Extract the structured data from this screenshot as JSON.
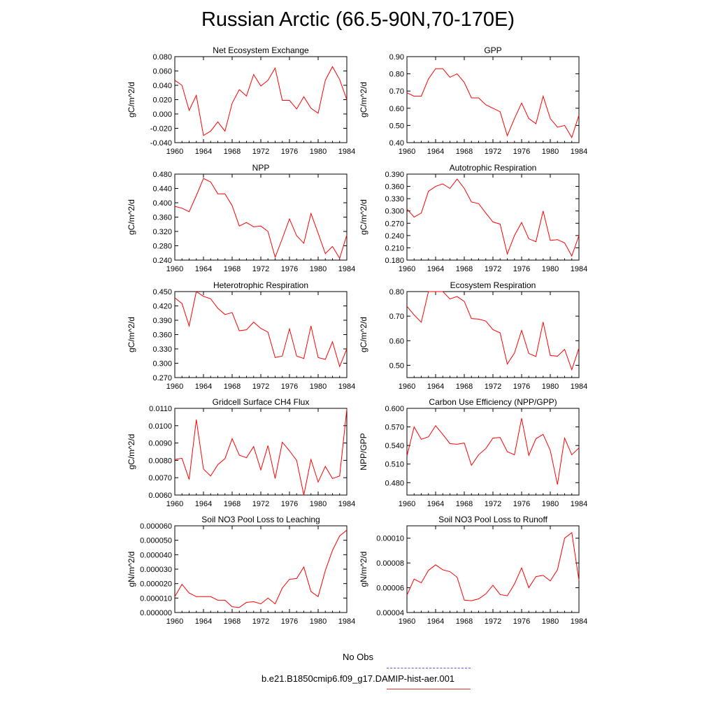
{
  "title": "Russian Arctic (66.5-90N,70-170E)",
  "legend": [
    {
      "label": "No Obs",
      "color": "#5555dd",
      "style": "dashed"
    },
    {
      "label": "b.e21.B1850cmip6.f09_g17.DAMIP-hist-aer.001",
      "color": "#dd3333",
      "style": "solid"
    }
  ],
  "chart_data": [
    {
      "type": "line",
      "title": "Net Ecosystem Exchange",
      "ylabel": "gC/m^2/d",
      "xlim": [
        1960,
        1984
      ],
      "ylim": [
        -0.04,
        0.08
      ],
      "xticks": [
        "1960",
        "1964",
        "1968",
        "1972",
        "1976",
        "1980",
        "1984"
      ],
      "yticks": [
        "-0.040",
        "-0.020",
        "0.000",
        "0.020",
        "0.040",
        "0.060",
        "0.080"
      ],
      "x": [
        1960,
        1961,
        1962,
        1963,
        1964,
        1965,
        1966,
        1967,
        1968,
        1969,
        1970,
        1971,
        1972,
        1973,
        1974,
        1975,
        1976,
        1977,
        1978,
        1979,
        1980,
        1981,
        1982,
        1983,
        1984
      ],
      "series": [
        {
          "color": "#ff0000",
          "values": [
            0.047,
            0.04,
            0.005,
            0.026,
            -0.03,
            -0.024,
            -0.011,
            -0.024,
            0.015,
            0.034,
            0.025,
            0.055,
            0.039,
            0.047,
            0.064,
            0.019,
            0.019,
            0.007,
            0.024,
            0.008,
            0.001,
            0.047,
            0.066,
            0.048,
            0.02
          ]
        }
      ]
    },
    {
      "type": "line",
      "title": "GPP",
      "ylabel": "gC/m^2/d",
      "xlim": [
        1960,
        1984
      ],
      "ylim": [
        0.4,
        0.9
      ],
      "xticks": [
        "1960",
        "1964",
        "1968",
        "1972",
        "1976",
        "1980",
        "1984"
      ],
      "yticks": [
        "0.40",
        "0.50",
        "0.60",
        "0.70",
        "0.80",
        "0.90"
      ],
      "x": [
        1960,
        1961,
        1962,
        1963,
        1964,
        1965,
        1966,
        1967,
        1968,
        1969,
        1970,
        1971,
        1972,
        1973,
        1974,
        1975,
        1976,
        1977,
        1978,
        1979,
        1980,
        1981,
        1982,
        1983,
        1984
      ],
      "series": [
        {
          "color": "#ff0000",
          "values": [
            0.69,
            0.67,
            0.67,
            0.77,
            0.83,
            0.83,
            0.78,
            0.8,
            0.75,
            0.66,
            0.66,
            0.62,
            0.6,
            0.58,
            0.44,
            0.54,
            0.63,
            0.54,
            0.51,
            0.67,
            0.54,
            0.49,
            0.5,
            0.43,
            0.56
          ]
        }
      ]
    },
    {
      "type": "line",
      "title": "NPP",
      "ylabel": "gC/m^2/d",
      "xlim": [
        1960,
        1984
      ],
      "ylim": [
        0.24,
        0.48
      ],
      "xticks": [
        "1960",
        "1964",
        "1968",
        "1972",
        "1976",
        "1980",
        "1984"
      ],
      "yticks": [
        "0.240",
        "0.280",
        "0.320",
        "0.360",
        "0.400",
        "0.440",
        "0.480"
      ],
      "x": [
        1960,
        1961,
        1962,
        1963,
        1964,
        1965,
        1966,
        1967,
        1968,
        1969,
        1970,
        1971,
        1972,
        1973,
        1974,
        1975,
        1976,
        1977,
        1978,
        1979,
        1980,
        1981,
        1982,
        1983,
        1984
      ],
      "series": [
        {
          "color": "#ff0000",
          "values": [
            0.39,
            0.385,
            0.375,
            0.42,
            0.468,
            0.458,
            0.425,
            0.425,
            0.392,
            0.335,
            0.345,
            0.333,
            0.335,
            0.32,
            0.248,
            0.3,
            0.355,
            0.308,
            0.287,
            0.37,
            0.315,
            0.258,
            0.278,
            0.245,
            0.31
          ]
        }
      ]
    },
    {
      "type": "line",
      "title": "Autotrophic Respiration",
      "ylabel": "gC/m^2/d",
      "xlim": [
        1960,
        1984
      ],
      "ylim": [
        0.18,
        0.39
      ],
      "xticks": [
        "1960",
        "1964",
        "1968",
        "1972",
        "1976",
        "1980",
        "1984"
      ],
      "yticks": [
        "0.180",
        "0.210",
        "0.240",
        "0.270",
        "0.300",
        "0.330",
        "0.360",
        "0.390"
      ],
      "x": [
        1960,
        1961,
        1962,
        1963,
        1964,
        1965,
        1966,
        1967,
        1968,
        1969,
        1970,
        1971,
        1972,
        1973,
        1974,
        1975,
        1976,
        1977,
        1978,
        1979,
        1980,
        1981,
        1982,
        1983,
        1984
      ],
      "series": [
        {
          "color": "#ff0000",
          "values": [
            0.305,
            0.285,
            0.295,
            0.348,
            0.36,
            0.366,
            0.355,
            0.378,
            0.355,
            0.322,
            0.318,
            0.295,
            0.273,
            0.268,
            0.195,
            0.24,
            0.272,
            0.232,
            0.225,
            0.3,
            0.228,
            0.23,
            0.222,
            0.19,
            0.24
          ]
        }
      ]
    },
    {
      "type": "line",
      "title": "Heterotrophic Respiration",
      "ylabel": "gC/m^2/d",
      "xlim": [
        1960,
        1984
      ],
      "ylim": [
        0.27,
        0.45
      ],
      "xticks": [
        "1960",
        "1964",
        "1968",
        "1972",
        "1976",
        "1980",
        "1984"
      ],
      "yticks": [
        "0.270",
        "0.300",
        "0.330",
        "0.360",
        "0.390",
        "0.420",
        "0.450"
      ],
      "x": [
        1960,
        1961,
        1962,
        1963,
        1964,
        1965,
        1966,
        1967,
        1968,
        1969,
        1970,
        1971,
        1972,
        1973,
        1974,
        1975,
        1976,
        1977,
        1978,
        1979,
        1980,
        1981,
        1982,
        1983,
        1984
      ],
      "series": [
        {
          "color": "#ff0000",
          "values": [
            0.437,
            0.425,
            0.378,
            0.45,
            0.44,
            0.435,
            0.415,
            0.402,
            0.406,
            0.368,
            0.37,
            0.386,
            0.373,
            0.365,
            0.312,
            0.315,
            0.372,
            0.315,
            0.31,
            0.378,
            0.312,
            0.308,
            0.345,
            0.293,
            0.33
          ]
        }
      ]
    },
    {
      "type": "line",
      "title": "Ecosystem Respiration",
      "ylabel": "gC/m^2/d",
      "xlim": [
        1960,
        1984
      ],
      "ylim": [
        0.45,
        0.8
      ],
      "xticks": [
        "1960",
        "1964",
        "1968",
        "1972",
        "1976",
        "1980",
        "1984"
      ],
      "yticks": [
        "0.50",
        "0.60",
        "0.70",
        "0.80"
      ],
      "x": [
        1960,
        1961,
        1962,
        1963,
        1964,
        1965,
        1966,
        1967,
        1968,
        1969,
        1970,
        1971,
        1972,
        1973,
        1974,
        1975,
        1976,
        1977,
        1978,
        1979,
        1980,
        1981,
        1982,
        1983,
        1984
      ],
      "series": [
        {
          "color": "#ff0000",
          "values": [
            0.74,
            0.705,
            0.675,
            0.8,
            0.8,
            0.8,
            0.77,
            0.78,
            0.76,
            0.69,
            0.688,
            0.68,
            0.645,
            0.632,
            0.505,
            0.55,
            0.642,
            0.548,
            0.536,
            0.676,
            0.54,
            0.537,
            0.565,
            0.482,
            0.57
          ]
        }
      ]
    },
    {
      "type": "line",
      "title": "Gridcell Surface CH4 Flux",
      "ylabel": "gC/m^2/d",
      "xlim": [
        1960,
        1984
      ],
      "ylim": [
        0.006,
        0.011
      ],
      "xticks": [
        "1960",
        "1964",
        "1968",
        "1972",
        "1976",
        "1980",
        "1984"
      ],
      "yticks": [
        "0.0060",
        "0.0070",
        "0.0080",
        "0.0090",
        "0.0100",
        "0.0110"
      ],
      "x": [
        1960,
        1961,
        1962,
        1963,
        1964,
        1965,
        1966,
        1967,
        1968,
        1969,
        1970,
        1971,
        1972,
        1973,
        1974,
        1975,
        1976,
        1977,
        1978,
        1979,
        1980,
        1981,
        1982,
        1983,
        1984
      ],
      "series": [
        {
          "color": "#ff0000",
          "values": [
            0.00805,
            0.00812,
            0.0069,
            0.01035,
            0.0075,
            0.0071,
            0.00775,
            0.0081,
            0.00925,
            0.0083,
            0.00815,
            0.0088,
            0.00745,
            0.00885,
            0.00695,
            0.00905,
            0.00855,
            0.008,
            0.006,
            0.00805,
            0.00675,
            0.00765,
            0.00695,
            0.0071,
            0.01095
          ]
        }
      ]
    },
    {
      "type": "line",
      "title": "Carbon Use Efficiency (NPP/GPP)",
      "ylabel": "NPP/GPP",
      "xlim": [
        1960,
        1984
      ],
      "ylim": [
        0.46,
        0.6
      ],
      "xticks": [
        "1960",
        "1964",
        "1968",
        "1972",
        "1976",
        "1980",
        "1984"
      ],
      "yticks": [
        "0.480",
        "0.510",
        "0.540",
        "0.570",
        "0.600"
      ],
      "x": [
        1960,
        1961,
        1962,
        1963,
        1964,
        1965,
        1966,
        1967,
        1968,
        1969,
        1970,
        1971,
        1972,
        1973,
        1974,
        1975,
        1976,
        1977,
        1978,
        1979,
        1980,
        1981,
        1982,
        1983,
        1984
      ],
      "series": [
        {
          "color": "#ff0000",
          "values": [
            0.523,
            0.57,
            0.55,
            0.554,
            0.572,
            0.558,
            0.543,
            0.542,
            0.544,
            0.508,
            0.525,
            0.535,
            0.552,
            0.553,
            0.53,
            0.525,
            0.584,
            0.524,
            0.551,
            0.558,
            0.532,
            0.477,
            0.552,
            0.525,
            0.536
          ]
        }
      ]
    },
    {
      "type": "line",
      "title": "Soil NO3 Pool Loss to Leaching",
      "ylabel": "gN/m^2/d",
      "xlim": [
        1960,
        1984
      ],
      "ylim": [
        0,
        6e-05
      ],
      "xticks": [
        "1960",
        "1964",
        "1968",
        "1972",
        "1976",
        "1980",
        "1984"
      ],
      "yticks": [
        "0.000000",
        "0.000010",
        "0.000020",
        "0.000030",
        "0.000040",
        "0.000050",
        "0.000060"
      ],
      "x": [
        1960,
        1961,
        1962,
        1963,
        1964,
        1965,
        1966,
        1967,
        1968,
        1969,
        1970,
        1971,
        1972,
        1973,
        1974,
        1975,
        1976,
        1977,
        1978,
        1979,
        1980,
        1981,
        1982,
        1983,
        1984
      ],
      "series": [
        {
          "color": "#ff0000",
          "values": [
            1.1e-05,
            1.95e-05,
            1.35e-05,
            1.1e-05,
            1.1e-05,
            1.1e-05,
            8.5e-06,
            8.5e-06,
            4e-06,
            3.5e-06,
            7e-06,
            7.5e-06,
            6e-06,
            1e-05,
            6e-06,
            1.7e-05,
            2.3e-05,
            2.35e-05,
            3.15e-05,
            1.45e-05,
            1.1e-05,
            2.9e-05,
            4.3e-05,
            5.3e-05,
            5.7e-05
          ]
        }
      ]
    },
    {
      "type": "line",
      "title": "Soil NO3 Pool Loss to Runoff",
      "ylabel": "gN/m^2/d",
      "xlim": [
        1960,
        1984
      ],
      "ylim": [
        4e-05,
        0.00011
      ],
      "xticks": [
        "1960",
        "1964",
        "1968",
        "1972",
        "1976",
        "1980",
        "1984"
      ],
      "yticks": [
        "0.00004",
        "0.00006",
        "0.00008",
        "0.00010"
      ],
      "x": [
        1960,
        1961,
        1962,
        1963,
        1964,
        1965,
        1966,
        1967,
        1968,
        1969,
        1970,
        1971,
        1972,
        1973,
        1974,
        1975,
        1976,
        1977,
        1978,
        1979,
        1980,
        1981,
        1982,
        1983,
        1984
      ],
      "series": [
        {
          "color": "#ff0000",
          "values": [
            5.4e-05,
            6.7e-05,
            6.4e-05,
            7.4e-05,
            7.85e-05,
            7.45e-05,
            7.3e-05,
            6.85e-05,
            5e-05,
            4.95e-05,
            5.1e-05,
            5.5e-05,
            6.2e-05,
            5.45e-05,
            5.35e-05,
            6.3e-05,
            7.6e-05,
            6e-05,
            6.9e-05,
            7e-05,
            6.55e-05,
            7.45e-05,
            0.0001,
            0.0001045,
            6.6e-05
          ]
        }
      ]
    }
  ]
}
